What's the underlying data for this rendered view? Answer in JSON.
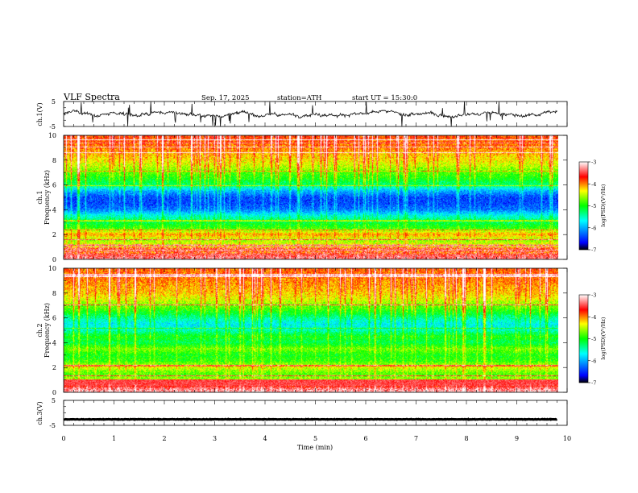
{
  "header": {
    "title": "VLF  Spectra",
    "date": "Sep. 17, 2025",
    "station": "station=ATH",
    "start_ut": "start  UT  =    15:30:0"
  },
  "colors": {
    "background": "#ffffff",
    "axis": "#000000",
    "trace": "#111111",
    "colormap": [
      "#000000",
      "#0000ff",
      "#00ffff",
      "#00ff00",
      "#ffff00",
      "#ff0000",
      "#ffffff"
    ]
  },
  "chart_data": [
    {
      "type": "line",
      "name": "ch1-waveform",
      "ylabel": "ch.1(V)",
      "ylim": [
        -5,
        5
      ],
      "yticks": [
        "5",
        "-5"
      ],
      "x_unit": "min",
      "xlim": [
        0,
        10
      ],
      "data_extent_min": 9.8,
      "mean_level": 0,
      "amplitude_estimate": 1.5
    },
    {
      "type": "heatmap",
      "name": "ch1-spectrogram",
      "ylabel_top": "ch.1",
      "ylabel": "Frequency  (kHz)",
      "ylim": [
        0,
        10
      ],
      "yticks": [
        "0",
        "2",
        "4",
        "6",
        "8",
        "10"
      ],
      "xlim": [
        0,
        10
      ],
      "colorbar": {
        "label": "log(PSD)(V²/Hz)",
        "range": [
          -7,
          -3
        ],
        "ticks": [
          "-3",
          "-4",
          "-5",
          "-6",
          "-7"
        ]
      },
      "frequency_profile_logpsd": [
        [
          0.0,
          -3.4
        ],
        [
          0.3,
          -3.6
        ],
        [
          0.5,
          -4.0
        ],
        [
          0.8,
          -3.8
        ],
        [
          1.0,
          -4.3
        ],
        [
          1.5,
          -4.6
        ],
        [
          2.0,
          -4.1
        ],
        [
          2.5,
          -4.9
        ],
        [
          3.0,
          -5.2
        ],
        [
          3.5,
          -5.6
        ],
        [
          4.0,
          -6.2
        ],
        [
          4.5,
          -6.4
        ],
        [
          5.0,
          -6.4
        ],
        [
          5.5,
          -6.0
        ],
        [
          6.0,
          -5.3
        ],
        [
          6.5,
          -5.0
        ],
        [
          7.0,
          -4.8
        ],
        [
          7.5,
          -4.5
        ],
        [
          8.0,
          -4.3
        ],
        [
          9.0,
          -4.0
        ],
        [
          10.0,
          -3.8
        ]
      ]
    },
    {
      "type": "heatmap",
      "name": "ch2-spectrogram",
      "ylabel_top": "ch.2",
      "ylabel": "Frequency  (kHz)",
      "ylim": [
        0,
        10
      ],
      "yticks": [
        "0",
        "2",
        "4",
        "6",
        "8",
        "10"
      ],
      "xlim": [
        0,
        10
      ],
      "colorbar": {
        "label": "log(PSD)(V²/Hz)",
        "range": [
          -7,
          -3
        ],
        "ticks": [
          "-3",
          "-4",
          "-5",
          "-6",
          "-7"
        ]
      },
      "frequency_profile_logpsd": [
        [
          0.0,
          -3.2
        ],
        [
          0.3,
          -3.4
        ],
        [
          0.6,
          -3.9
        ],
        [
          1.0,
          -4.6
        ],
        [
          1.5,
          -4.8
        ],
        [
          2.0,
          -4.4
        ],
        [
          2.5,
          -4.9
        ],
        [
          3.0,
          -5.0
        ],
        [
          3.5,
          -4.7
        ],
        [
          4.0,
          -5.2
        ],
        [
          4.5,
          -5.0
        ],
        [
          5.0,
          -5.5
        ],
        [
          5.5,
          -5.7
        ],
        [
          6.0,
          -5.4
        ],
        [
          6.5,
          -5.0
        ],
        [
          7.0,
          -4.7
        ],
        [
          7.5,
          -4.4
        ],
        [
          8.0,
          -4.2
        ],
        [
          9.0,
          -4.0
        ],
        [
          10.0,
          -3.9
        ]
      ]
    },
    {
      "type": "line",
      "name": "ch3-waveform",
      "ylabel": "ch.3(V)",
      "ylim": [
        -5,
        5
      ],
      "yticks": [
        "5",
        "-5"
      ],
      "x_unit": "min",
      "xlim": [
        0,
        10
      ],
      "data_extent_min": 9.8,
      "mean_level": -2.6,
      "amplitude_estimate": 0.15
    }
  ],
  "x_axis": {
    "label": "Time  (min)",
    "ticks": [
      "0",
      "1",
      "2",
      "3",
      "4",
      "5",
      "6",
      "7",
      "8",
      "9",
      "10"
    ]
  }
}
